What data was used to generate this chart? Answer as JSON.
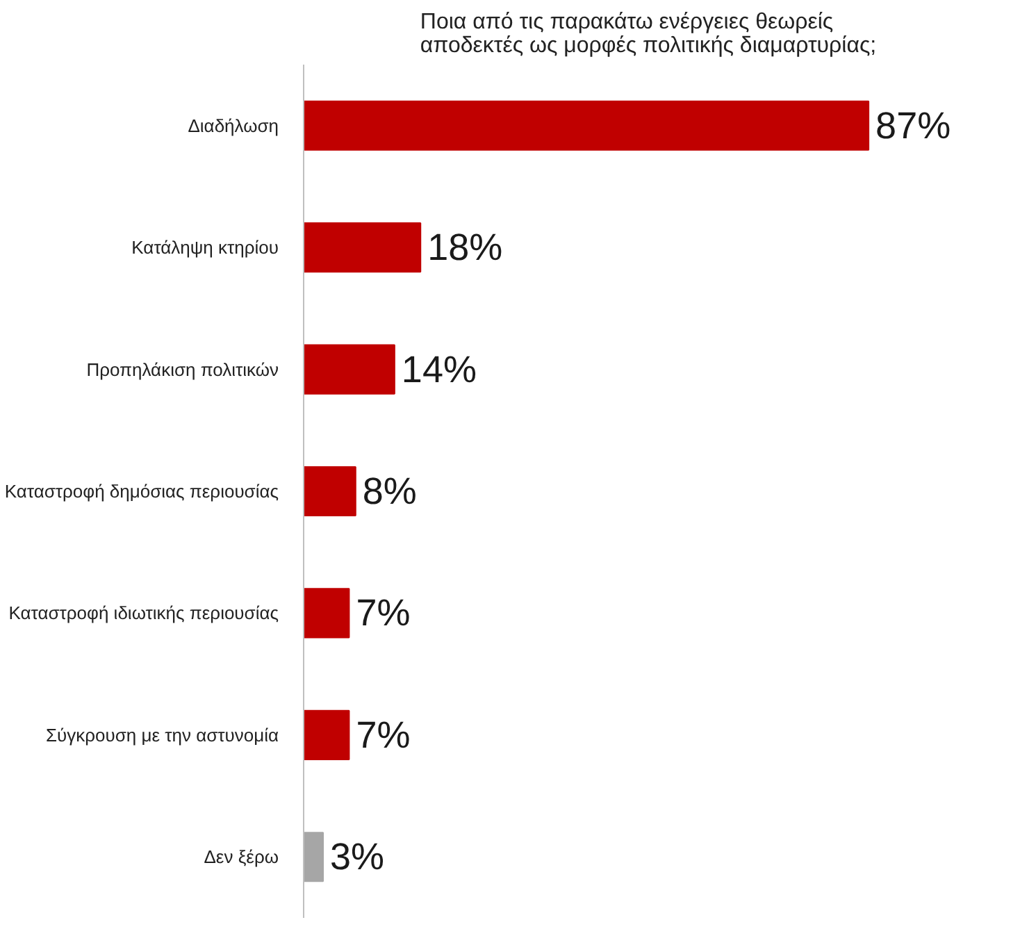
{
  "chart_data": {
    "type": "bar",
    "orientation": "horizontal",
    "title": "Ποια από τις παρακάτω ενέργειες θεωρείς\nαποδεκτές ως μορφές πολιτικής διαμαρτυρίας;",
    "categories": [
      "Διαδήλωση",
      "Κατάληψη κτηρίου",
      "Προπηλάκιση πολιτικών",
      "Καταστροφή δημόσιας περιουσίας",
      "Καταστροφή ιδιωτικής περιουσίας",
      "Σύγκρουση με την αστυνομία",
      "Δεν ξέρω"
    ],
    "values": [
      87,
      18,
      14,
      8,
      7,
      7,
      3
    ],
    "colors": [
      "#c00000",
      "#c00000",
      "#c00000",
      "#c00000",
      "#c00000",
      "#c00000",
      "#a6a6a6"
    ],
    "value_labels": [
      "87%",
      "18%",
      "14%",
      "8%",
      "7%",
      "7%",
      "3%"
    ],
    "grid": false
  }
}
